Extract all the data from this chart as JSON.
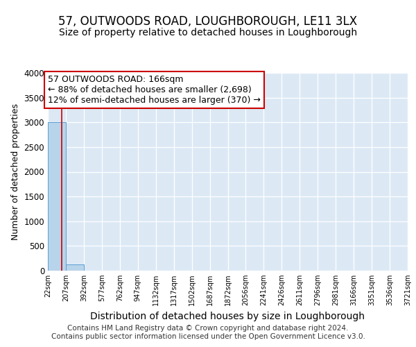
{
  "title": "57, OUTWOODS ROAD, LOUGHBOROUGH, LE11 3LX",
  "subtitle": "Size of property relative to detached houses in Loughborough",
  "xlabel": "Distribution of detached houses by size in Loughborough",
  "ylabel": "Number of detached properties",
  "footer_line1": "Contains HM Land Registry data © Crown copyright and database right 2024.",
  "footer_line2": "Contains public sector information licensed under the Open Government Licence v3.0.",
  "annotation_line1": "57 OUTWOODS ROAD: 166sqm",
  "annotation_line2": "← 88% of detached houses are smaller (2,698)",
  "annotation_line3": "12% of semi-detached houses are larger (370) →",
  "bar_edges": [
    22,
    207,
    392,
    577,
    762,
    947,
    1132,
    1317,
    1502,
    1687,
    1872,
    2056,
    2241,
    2426,
    2611,
    2796,
    2981,
    3166,
    3351,
    3536,
    3721
  ],
  "bar_heights": [
    3000,
    120,
    5,
    2,
    1,
    1,
    0,
    0,
    0,
    0,
    0,
    0,
    0,
    0,
    0,
    0,
    0,
    0,
    0,
    0
  ],
  "bar_color": "#b8d4ea",
  "bar_edge_color": "#5a9fd4",
  "background_color": "#dce9f5",
  "axes_facecolor": "#dce9f5",
  "grid_color": "#ffffff",
  "property_line_color": "#cc0000",
  "property_sqm": 166,
  "ylim": [
    0,
    4000
  ],
  "yticks": [
    0,
    500,
    1000,
    1500,
    2000,
    2500,
    3000,
    3500,
    4000
  ],
  "title_fontsize": 12,
  "subtitle_fontsize": 10,
  "annotation_fontsize": 9,
  "xlabel_fontsize": 10,
  "ylabel_fontsize": 9,
  "footer_fontsize": 7.5
}
